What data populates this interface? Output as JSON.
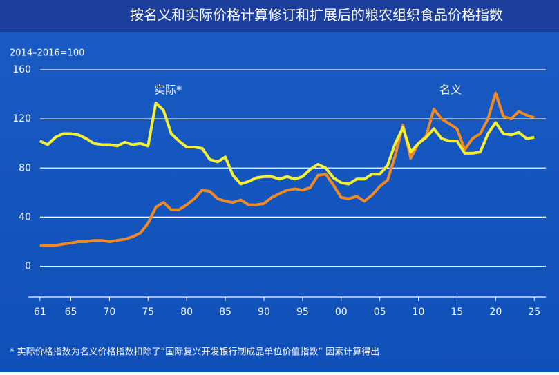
{
  "chart_data": {
    "type": "line",
    "title": "按名义和实际价格计算修订和扩展后的粮农组织食品价格指数",
    "y_label": "2014–2016=100",
    "footnote": "* 实际价格指数为名义价格指数扣除了“国际复兴开发银行制成品单位价值指数” 因素计算得出.",
    "x": [
      1961,
      1962,
      1963,
      1964,
      1965,
      1966,
      1967,
      1968,
      1969,
      1970,
      1971,
      1972,
      1973,
      1974,
      1975,
      1976,
      1977,
      1978,
      1979,
      1980,
      1981,
      1982,
      1983,
      1984,
      1985,
      1986,
      1987,
      1988,
      1989,
      1990,
      1991,
      1992,
      1993,
      1994,
      1995,
      1996,
      1997,
      1998,
      1999,
      2000,
      2001,
      2002,
      2003,
      2004,
      2005,
      2006,
      2007,
      2008,
      2009,
      2010,
      2011,
      2012,
      2013,
      2014,
      2015,
      2016,
      2017,
      2018,
      2019,
      2020,
      2021,
      2022,
      2023,
      2024,
      2025
    ],
    "series": [
      {
        "name": "名义",
        "color": "#f08a24",
        "values": [
          17,
          17,
          17,
          18,
          19,
          20,
          20,
          21,
          21,
          20,
          21,
          22,
          24,
          27,
          35,
          48,
          52,
          46,
          46,
          50,
          55,
          62,
          61,
          55,
          53,
          52,
          54,
          50,
          50,
          51,
          56,
          59,
          62,
          63,
          62,
          64,
          74,
          75,
          66,
          56,
          55,
          57,
          53,
          58,
          65,
          70,
          90,
          115,
          88,
          100,
          106,
          128,
          120,
          116,
          112,
          95,
          104,
          108,
          120,
          141,
          122,
          120,
          126,
          123,
          121
        ]
      },
      {
        "name": "实际*",
        "color": "#f5f032",
        "values": [
          102,
          99,
          105,
          108,
          108,
          107,
          104,
          100,
          99,
          99,
          98,
          101,
          99,
          100,
          98,
          133,
          127,
          108,
          102,
          97,
          97,
          96,
          87,
          85,
          89,
          74,
          67,
          69,
          72,
          73,
          73,
          71,
          73,
          71,
          73,
          79,
          83,
          80,
          72,
          68,
          67,
          71,
          71,
          75,
          75,
          82,
          100,
          113,
          93,
          100,
          105,
          112,
          104,
          102,
          102,
          92,
          92,
          93,
          108,
          117,
          108,
          107,
          109,
          104,
          105
        ]
      }
    ],
    "xlim": [
      1959.5,
      2026.5
    ],
    "ylim": [
      -25,
      160
    ],
    "xticks": [
      {
        "value": 1961,
        "label": "61"
      },
      {
        "value": 1965,
        "label": "65"
      },
      {
        "value": 1970,
        "label": "70"
      },
      {
        "value": 1975,
        "label": "75"
      },
      {
        "value": 1980,
        "label": "80"
      },
      {
        "value": 1985,
        "label": "85"
      },
      {
        "value": 1990,
        "label": "90"
      },
      {
        "value": 1995,
        "label": "95"
      },
      {
        "value": 2000,
        "label": "00"
      },
      {
        "value": 2005,
        "label": "05"
      },
      {
        "value": 2010,
        "label": "10"
      },
      {
        "value": 2015,
        "label": "15"
      },
      {
        "value": 2020,
        "label": "20"
      },
      {
        "value": 2025,
        "label": "25"
      }
    ],
    "yticks": [
      0,
      40,
      80,
      120,
      160
    ],
    "grid": true
  }
}
